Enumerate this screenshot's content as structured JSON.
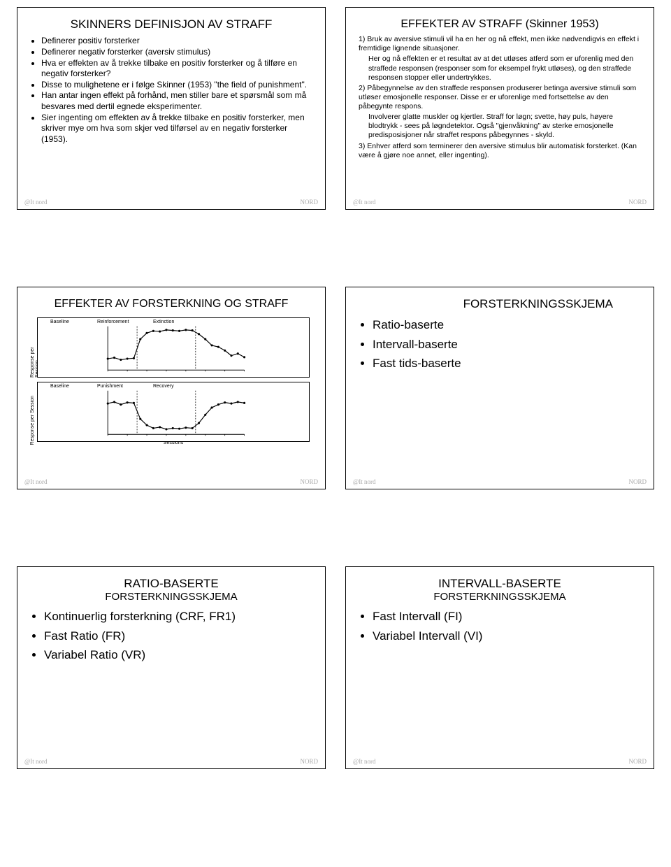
{
  "slides": {
    "s1": {
      "title": "SKINNERS DEFINISJON AV STRAFF",
      "bullets": [
        "Definerer positiv forsterker",
        "Definerer negativ forsterker (aversiv stimulus)",
        "Hva er effekten av å trekke tilbake en positiv forsterker og å tilføre en negativ forsterker?",
        "Disse to mulighetene er i følge Skinner (1953) \"the field of punishment\".",
        "Han antar ingen effekt på forhånd, men stiller bare et spørsmål som må besvares med dertil egnede eksperimenter.",
        "Sier ingenting om effekten av å trekke tilbake en positiv forsterker, men skriver mye om hva som skjer ved tilførsel av en negativ forsterker (1953)."
      ]
    },
    "s2": {
      "title": "EFFEKTER AV STRAFF (Skinner 1953)",
      "lines": [
        "1) Bruk av aversive stimuli vil ha en her og nå effekt, men ikke nødvendigvis en effekt i fremtidige lignende situasjoner.",
        "Her og nå effekten er et resultat av at det utløses atferd som er uforenlig med den straffede responsen (responser som for eksempel frykt utløses), og den straffede responsen stopper eller undertrykkes.",
        "2) Påbegynnelse av den straffede responsen produserer betinga aversive stimuli som utløser emosjonelle responser. Disse er er uforenlige med fortsettelse av den påbegynte respons.",
        "Involverer glatte muskler og kjertler. Straff for løgn; svette, høy puls, høyere blodtrykk - sees på løgndetektor. Også \"gjenvåkning\" av sterke emosjonelle predisposisjoner når straffet respons påbegynnes - skyld.",
        "3) Enhver atferd som terminerer den aversive stimulus blir automatisk forsterket. (Kan være å gjøre noe annet, eller ingenting)."
      ]
    },
    "s3": {
      "title": "EFFEKTER AV FORSTERKNING OG STRAFF",
      "chart1": {
        "phase_labels": [
          "Baseline",
          "Reinforcement",
          "Extinction"
        ],
        "ylab": "Response per Session",
        "points": [
          [
            0,
            22
          ],
          [
            1,
            24
          ],
          [
            2,
            20
          ],
          [
            3,
            22
          ],
          [
            4,
            23
          ],
          [
            5,
            60
          ],
          [
            6,
            72
          ],
          [
            7,
            76
          ],
          [
            8,
            75
          ],
          [
            9,
            78
          ],
          [
            10,
            77
          ],
          [
            11,
            76
          ],
          [
            12,
            78
          ],
          [
            13,
            77
          ],
          [
            14,
            70
          ],
          [
            15,
            60
          ],
          [
            16,
            48
          ],
          [
            17,
            45
          ],
          [
            18,
            38
          ],
          [
            19,
            28
          ],
          [
            20,
            32
          ],
          [
            21,
            25
          ]
        ],
        "divs": [
          4.5,
          13.5
        ]
      },
      "chart2": {
        "phase_labels": [
          "Baseline",
          "Punishment",
          "Recovery"
        ],
        "ylab": "Response per Session",
        "xlab": "Sessions",
        "points": [
          [
            0,
            60
          ],
          [
            1,
            63
          ],
          [
            2,
            58
          ],
          [
            3,
            62
          ],
          [
            4,
            61
          ],
          [
            5,
            30
          ],
          [
            6,
            18
          ],
          [
            7,
            12
          ],
          [
            8,
            14
          ],
          [
            9,
            10
          ],
          [
            10,
            12
          ],
          [
            11,
            11
          ],
          [
            12,
            13
          ],
          [
            13,
            12
          ],
          [
            14,
            22
          ],
          [
            15,
            38
          ],
          [
            16,
            52
          ],
          [
            17,
            58
          ],
          [
            18,
            62
          ],
          [
            19,
            60
          ],
          [
            20,
            63
          ],
          [
            21,
            61
          ]
        ],
        "divs": [
          4.5,
          13.5
        ]
      }
    },
    "s4": {
      "title": "FORSTERKNINGSSKJEMA",
      "bullets": [
        "Ratio-baserte",
        "Intervall-baserte",
        "Fast tids-baserte"
      ]
    },
    "s5": {
      "title": "RATIO-BASERTE",
      "subtitle": "FORSTERKNINGSSKJEMA",
      "bullets": [
        "Kontinuerlig forsterkning (CRF, FR1)",
        "Fast Ratio (FR)",
        "Variabel Ratio (VR)"
      ]
    },
    "s6": {
      "title": "INTERVALL-BASERTE",
      "subtitle": "FORSTERKNINGSSKJEMA",
      "bullets": [
        "Fast Intervall (FI)",
        "Variabel Intervall (VI)"
      ]
    }
  },
  "logo_left": "@It\nnord",
  "logo_right": "NORD",
  "colors": {
    "border": "#000000",
    "bg": "#ffffff",
    "logo": "#aaaaaa",
    "line": "#000000"
  }
}
